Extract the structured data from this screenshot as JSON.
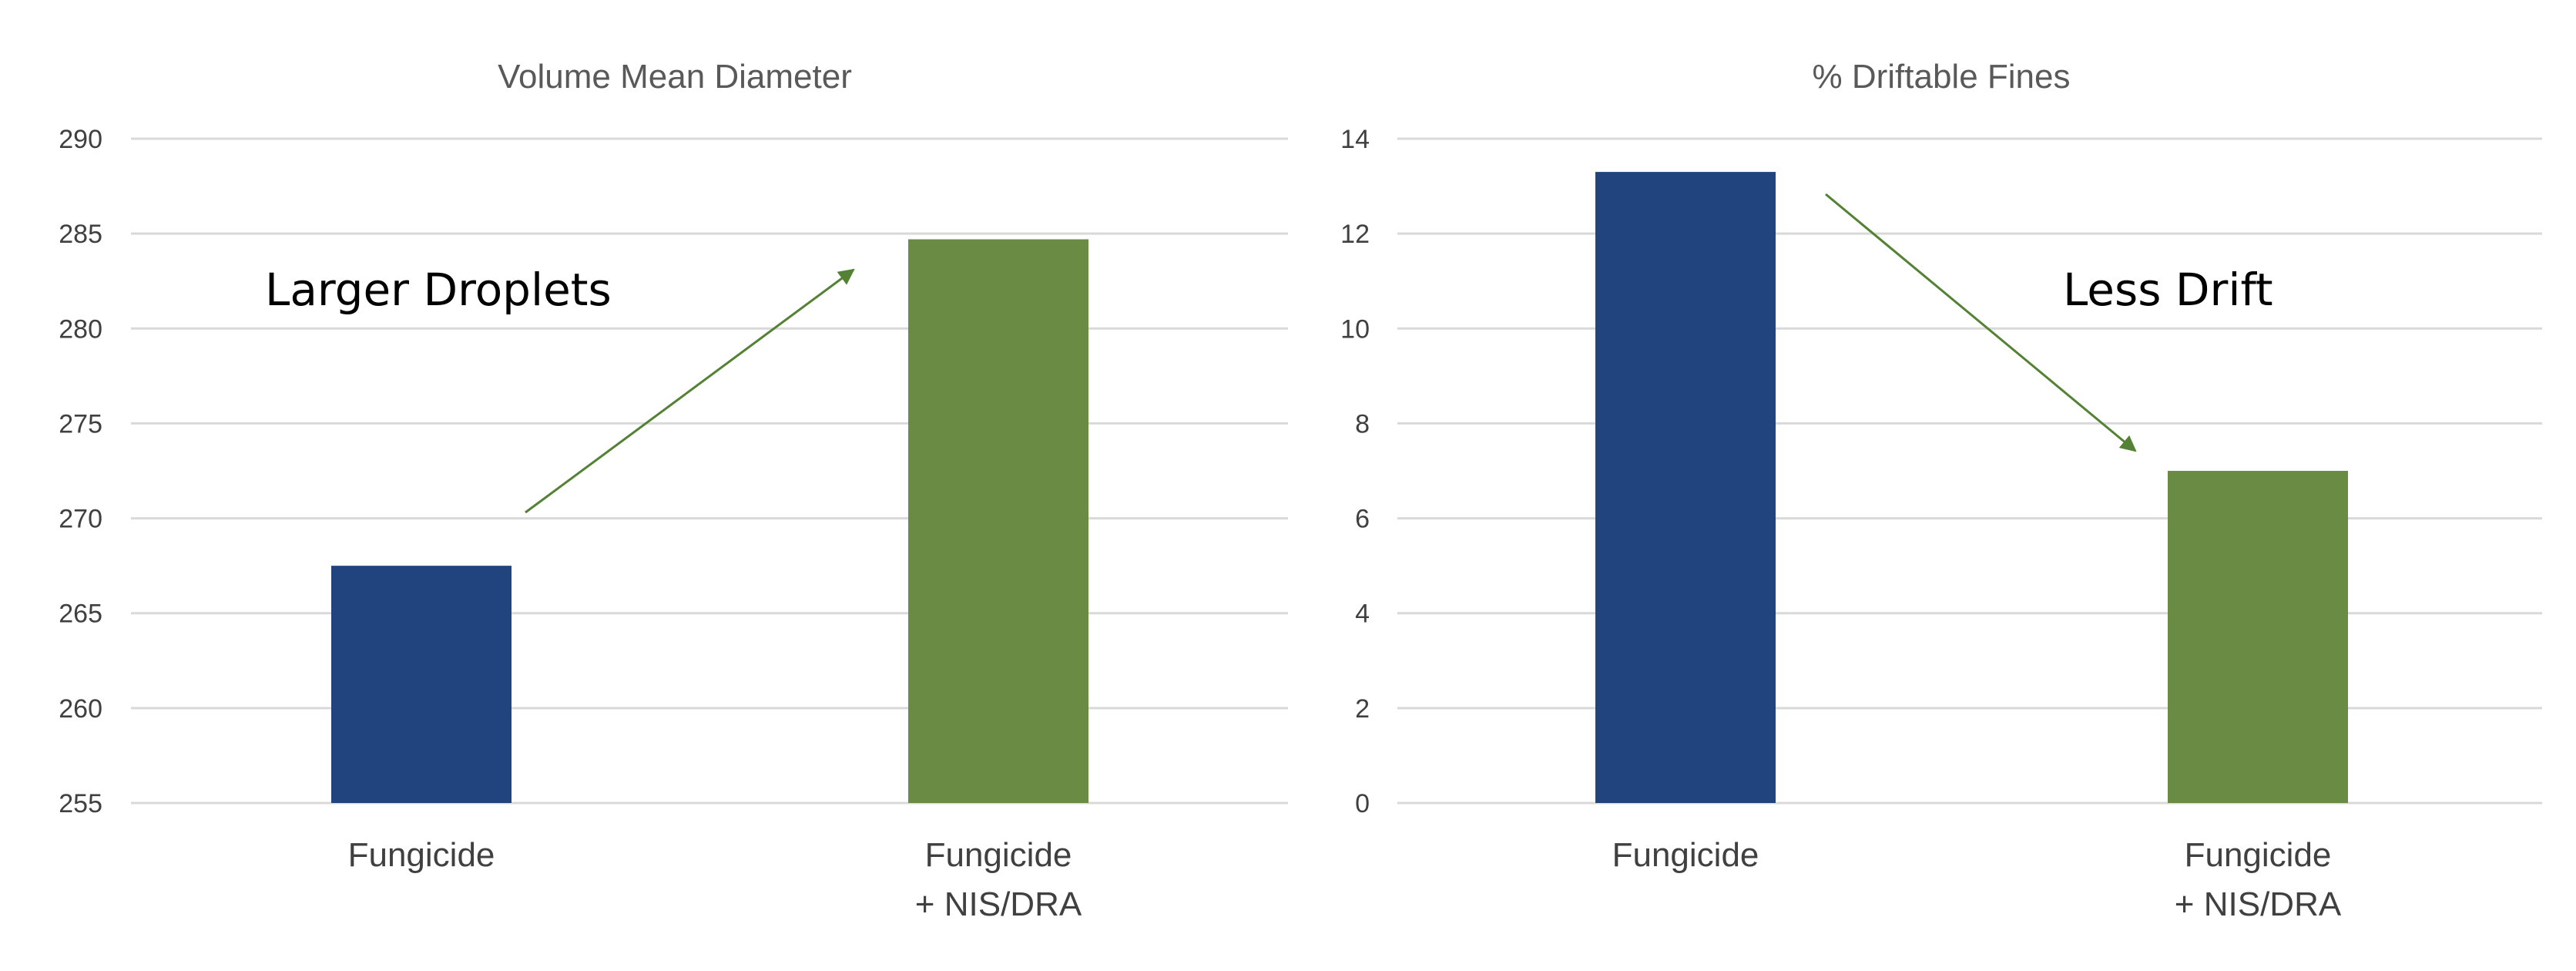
{
  "chart_data": [
    {
      "type": "bar",
      "title": "Volume Mean Diameter",
      "categories": [
        [
          "Fungicide"
        ],
        [
          "Fungicide",
          "+ NIS/DRA"
        ]
      ],
      "values": [
        267.5,
        284.7
      ],
      "ylim": [
        255,
        290
      ],
      "yticks": [
        "255",
        "260",
        "265",
        "270",
        "275",
        "280",
        "285",
        "290"
      ],
      "grid": true,
      "colors": [
        "#21437e",
        "#6a8b43"
      ],
      "annotation": {
        "text": "Larger Droplets",
        "arrow_direction": "up-right",
        "arrow_color": "#548235"
      }
    },
    {
      "type": "bar",
      "title": "% Driftable Fines",
      "categories": [
        [
          "Fungicide"
        ],
        [
          "Fungicide",
          "+ NIS/DRA"
        ]
      ],
      "values": [
        13.3,
        7.0
      ],
      "ylim": [
        0,
        14
      ],
      "yticks": [
        "0",
        "2",
        "4",
        "6",
        "8",
        "10",
        "12",
        "14"
      ],
      "grid": true,
      "colors": [
        "#21437e",
        "#6a8b43"
      ],
      "annotation": {
        "text": "Less Drift",
        "arrow_direction": "down-right",
        "arrow_color": "#548235"
      }
    }
  ]
}
